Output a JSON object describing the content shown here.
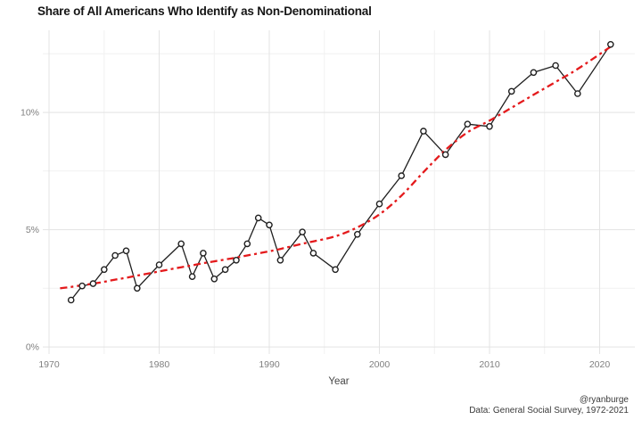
{
  "chart": {
    "title": "Share of All Americans Who Identify as Non-Denominational",
    "caption_line1": "@ryanburge",
    "caption_line2": "Data: General Social Survey, 1972-2021"
  },
  "chart_data": {
    "type": "line",
    "title": "Share of All Americans Who Identify as Non-Denominational",
    "xlabel": "Year",
    "ylabel": "",
    "xlim": [
      1969.43,
      2023.2
    ],
    "ylim": [
      -0.3,
      13.5
    ],
    "x_ticks": [
      1970,
      1980,
      1990,
      2000,
      2010,
      2020
    ],
    "x_minor_ticks": [
      1975,
      1985,
      1995,
      2005,
      2015
    ],
    "y_ticks": [
      0,
      5,
      10
    ],
    "y_tick_labels": [
      "0%",
      "5%",
      "10%"
    ],
    "y_minor_ticks": [
      2.5,
      7.5,
      12.5
    ],
    "grid": "major+minor",
    "legend": "none",
    "series": [
      {
        "name": "share-non-denominational",
        "style": "line-with-open-markers",
        "x": [
          1972,
          1973,
          1974,
          1975,
          1976,
          1977,
          1978,
          1980,
          1982,
          1983,
          1984,
          1985,
          1986,
          1987,
          1988,
          1989,
          1990,
          1991,
          1993,
          1994,
          1996,
          1998,
          2000,
          2002,
          2004,
          2006,
          2008,
          2010,
          2012,
          2014,
          2016,
          2018,
          2021
        ],
        "y": [
          2.0,
          2.6,
          2.7,
          3.3,
          3.9,
          4.1,
          2.5,
          3.5,
          4.4,
          3.0,
          4.0,
          2.9,
          3.3,
          3.7,
          4.4,
          5.5,
          5.2,
          3.7,
          4.9,
          4.0,
          3.3,
          4.8,
          6.1,
          7.3,
          9.2,
          8.2,
          9.5,
          9.4,
          10.9,
          11.7,
          12.0,
          10.8,
          12.9
        ]
      },
      {
        "name": "smoothed-trend",
        "style": "dashed-smooth-line",
        "x": [
          1971,
          1972,
          1973,
          1974,
          1975,
          1976,
          1977,
          1978,
          1980,
          1982,
          1983,
          1984,
          1985,
          1986,
          1987,
          1988,
          1989,
          1990,
          1991,
          1993,
          1994,
          1996,
          1998,
          2000,
          2002,
          2004,
          2006,
          2008,
          2010,
          2012,
          2014,
          2016,
          2018,
          2021
        ],
        "y": [
          2.5,
          2.56,
          2.63,
          2.7,
          2.78,
          2.87,
          2.95,
          3.04,
          3.22,
          3.4,
          3.48,
          3.57,
          3.65,
          3.73,
          3.81,
          3.9,
          3.99,
          4.08,
          4.18,
          4.4,
          4.5,
          4.72,
          5.1,
          5.65,
          6.45,
          7.45,
          8.4,
          9.15,
          9.65,
          10.2,
          10.75,
          11.3,
          11.85,
          12.8
        ]
      }
    ]
  },
  "style": {
    "background": "#ffffff",
    "line_color": "#1f1f1f",
    "marker_fill": "#ffffff",
    "trend_color": "#e41a1c",
    "grid_major": "#e3e3e3",
    "grid_minor": "#f1f1f1",
    "axis_text_color": "#7f7f7f",
    "axis_title_color": "#474747",
    "title_color": "#151515",
    "caption_color": "#3a3a3a"
  }
}
